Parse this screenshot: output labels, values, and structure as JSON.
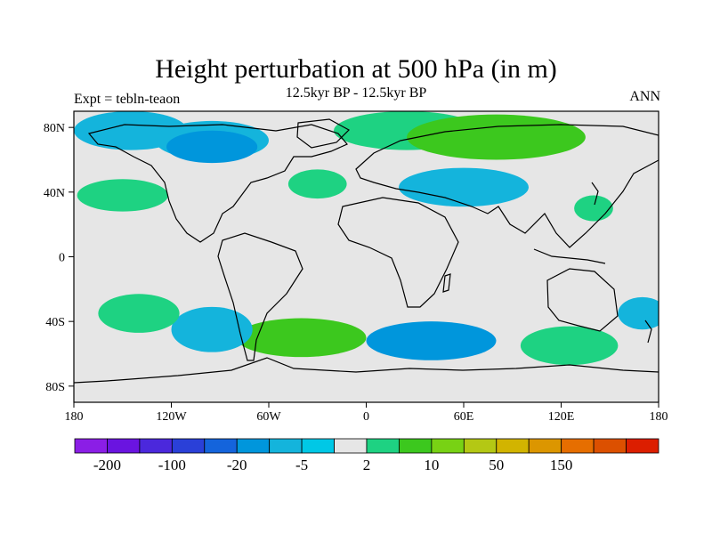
{
  "map": {
    "title": "Height perturbation at 500 hPa (in m)",
    "subtitle": "12.5kyr BP - 12.5kyr BP",
    "left_label": "Expt = tebln-teaon",
    "right_label": "ANN",
    "lat_ticks": [
      "80N",
      "40N",
      "0",
      "40S",
      "80S"
    ],
    "lon_ticks": [
      "180",
      "120W",
      "60W",
      "0",
      "60E",
      "120E",
      "180"
    ]
  },
  "colorbar": {
    "colors": [
      "#8b1ee6",
      "#6a14e0",
      "#4b28dc",
      "#2a40d8",
      "#1464dc",
      "#0096dc",
      "#14b4dc",
      "#00c8e6",
      "#e6e6e6",
      "#1ed282",
      "#3cc81e",
      "#78d214",
      "#b4c814",
      "#d2b400",
      "#dc9600",
      "#e66e00",
      "#dc5000",
      "#dc1e00"
    ],
    "labels": [
      "-200",
      "-100",
      "-20",
      "-5",
      "2",
      "10",
      "50",
      "150"
    ]
  },
  "fields": {
    "legend_units": "m",
    "blobs": [
      {
        "id": "arctic-america-neg1",
        "lon": -145,
        "lat": 78,
        "rlon": 35,
        "rlat": 12,
        "level": "light-blue"
      },
      {
        "id": "arctic-america-neg2",
        "lon": -95,
        "lat": 72,
        "rlon": 35,
        "rlat": 12,
        "level": "light-blue"
      },
      {
        "id": "canada-neg",
        "lon": -95,
        "lat": 68,
        "rlon": 28,
        "rlat": 10,
        "level": "blue"
      },
      {
        "id": "eurasia-pos1",
        "lon": 25,
        "lat": 78,
        "rlon": 45,
        "rlat": 12,
        "level": "green"
      },
      {
        "id": "eurasia-pos2",
        "lon": 80,
        "lat": 74,
        "rlon": 55,
        "rlat": 14,
        "level": "bright-green"
      },
      {
        "id": "asia-neg",
        "lon": 60,
        "lat": 43,
        "rlon": 40,
        "rlat": 12,
        "level": "light-blue"
      },
      {
        "id": "pacific-pos",
        "lon": -150,
        "lat": 38,
        "rlon": 28,
        "rlat": 10,
        "level": "green"
      },
      {
        "id": "atlantic-pos",
        "lon": -30,
        "lat": 45,
        "rlon": 18,
        "rlat": 9,
        "level": "green"
      },
      {
        "id": "south-atlantic-pos",
        "lon": -40,
        "lat": -50,
        "rlon": 40,
        "rlat": 12,
        "level": "bright-green"
      },
      {
        "id": "south-indian-neg",
        "lon": 40,
        "lat": -52,
        "rlon": 40,
        "rlat": 12,
        "level": "blue"
      },
      {
        "id": "south-pacific-neg",
        "lon": -95,
        "lat": -45,
        "rlon": 25,
        "rlat": 14,
        "level": "light-blue"
      },
      {
        "id": "south-pacific-pos",
        "lon": -140,
        "lat": -35,
        "rlon": 25,
        "rlat": 12,
        "level": "green"
      },
      {
        "id": "aus-south-pos",
        "lon": 125,
        "lat": -55,
        "rlon": 30,
        "rlat": 12,
        "level": "green"
      },
      {
        "id": "aus-east-neg",
        "lon": 170,
        "lat": -35,
        "rlon": 15,
        "rlat": 10,
        "level": "light-blue"
      },
      {
        "id": "japan-pos",
        "lon": 140,
        "lat": 30,
        "rlon": 12,
        "rlat": 8,
        "level": "green"
      }
    ]
  }
}
